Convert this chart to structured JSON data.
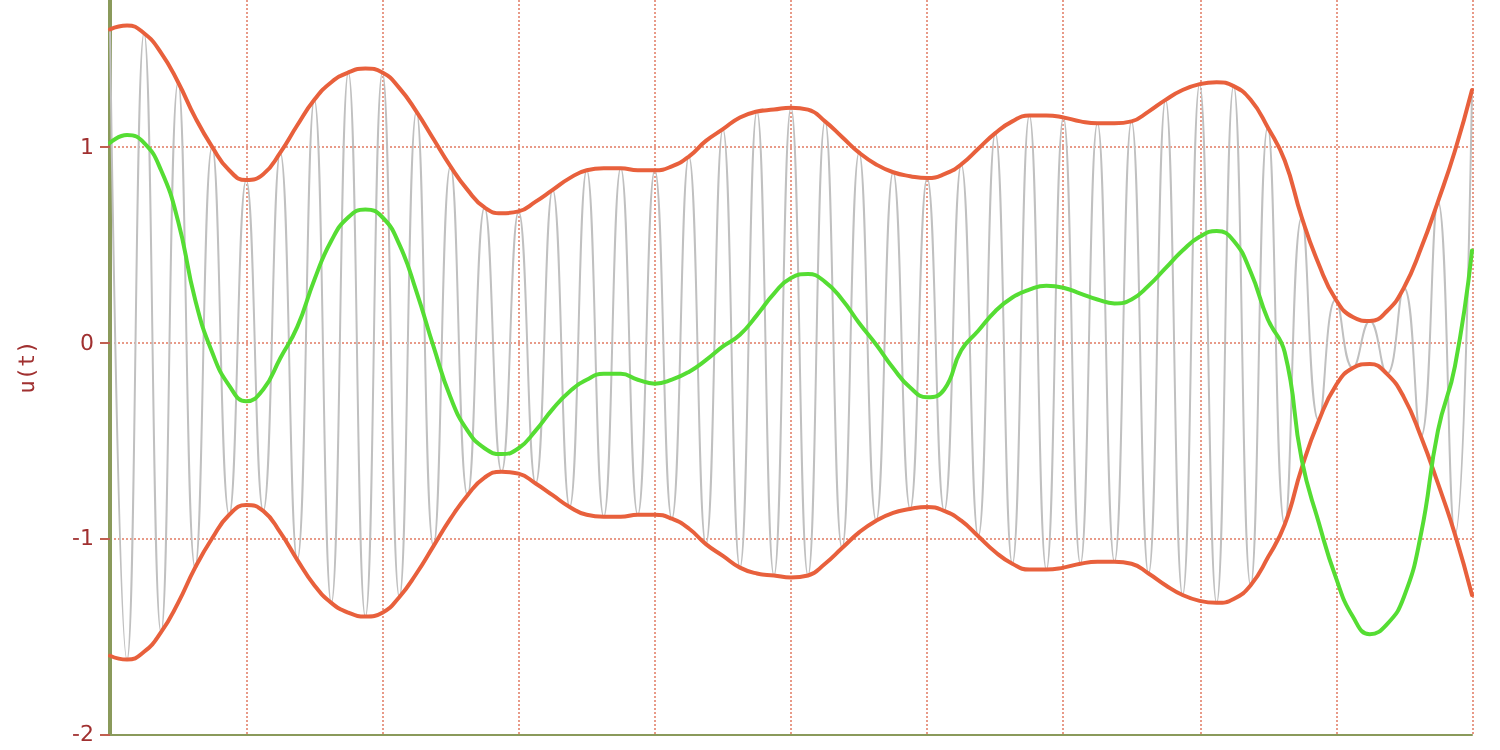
{
  "chart_data": {
    "type": "line",
    "ylabel": "u(t)",
    "ylim": [
      -2,
      1.75
    ],
    "yticks": [
      -2,
      -1,
      0,
      1
    ],
    "grid": true,
    "marker": "none",
    "line_style": "solid",
    "categories": [
      null,
      null,
      null,
      null,
      null,
      null,
      null,
      null,
      null,
      null,
      null,
      null,
      null,
      null,
      null,
      null,
      null,
      null,
      null,
      null,
      null,
      null,
      null,
      null,
      null,
      null,
      null,
      null,
      null,
      null,
      null,
      null,
      null,
      null,
      null,
      null,
      null,
      null,
      null,
      null,
      null,
      null,
      null,
      null,
      null,
      null,
      null,
      null,
      null,
      null,
      null,
      null,
      null,
      null,
      null,
      null,
      null,
      null,
      null,
      null,
      null,
      null,
      null,
      null,
      null,
      null,
      null,
      null,
      null,
      null,
      null,
      null,
      null,
      null,
      null,
      null,
      null,
      null,
      null,
      null,
      null
    ],
    "series": [
      {
        "color": "#c0c0c0",
        "values": [
          1.6,
          -1.62,
          1.58,
          -1.48,
          1.33,
          -1.15,
          1.0,
          -0.88,
          0.83,
          -0.86,
          0.97,
          -1.11,
          1.24,
          -1.33,
          1.38,
          -1.4,
          1.38,
          -1.3,
          1.18,
          -1.04,
          0.9,
          -0.78,
          0.69,
          -0.66,
          0.67,
          -0.72,
          0.78,
          -0.84,
          0.88,
          -0.89,
          0.89,
          -0.88,
          0.88,
          -0.9,
          0.95,
          -1.03,
          1.09,
          -1.15,
          1.18,
          -1.19,
          1.2,
          -1.19,
          1.13,
          -1.05,
          0.97,
          -0.91,
          0.87,
          -0.85,
          0.84,
          -0.86,
          0.91,
          -0.99,
          1.07,
          -1.13,
          1.16,
          -1.16,
          1.15,
          -1.13,
          1.12,
          -1.12,
          1.13,
          -1.18,
          1.24,
          -1.29,
          1.32,
          -1.33,
          1.31,
          -1.24,
          1.1,
          -0.93,
          0.64,
          -0.4,
          0.22,
          -0.13,
          0.11,
          -0.16,
          0.28,
          -0.48,
          0.72,
          -0.98,
          1.29
        ]
      },
      {
        "color": "#e8603c",
        "values": [
          1.6,
          1.62,
          1.58,
          1.48,
          1.33,
          1.15,
          1.0,
          0.88,
          0.83,
          0.86,
          0.97,
          1.11,
          1.24,
          1.33,
          1.38,
          1.4,
          1.38,
          1.3,
          1.18,
          1.04,
          0.9,
          0.78,
          0.69,
          0.66,
          0.67,
          0.72,
          0.78,
          0.84,
          0.88,
          0.89,
          0.89,
          0.88,
          0.88,
          0.9,
          0.95,
          1.03,
          1.09,
          1.15,
          1.18,
          1.19,
          1.2,
          1.19,
          1.13,
          1.05,
          0.97,
          0.91,
          0.87,
          0.85,
          0.84,
          0.86,
          0.91,
          0.99,
          1.07,
          1.13,
          1.16,
          1.16,
          1.15,
          1.13,
          1.12,
          1.12,
          1.13,
          1.18,
          1.24,
          1.29,
          1.32,
          1.33,
          1.31,
          1.24,
          1.1,
          0.93,
          0.64,
          0.4,
          0.22,
          0.13,
          0.11,
          0.16,
          0.28,
          0.48,
          0.72,
          0.98,
          1.29
        ]
      },
      {
        "color": "#e8603c",
        "values": [
          -1.6,
          -1.62,
          -1.58,
          -1.48,
          -1.33,
          -1.15,
          -1.0,
          -0.88,
          -0.83,
          -0.86,
          -0.97,
          -1.11,
          -1.24,
          -1.33,
          -1.38,
          -1.4,
          -1.38,
          -1.3,
          -1.18,
          -1.04,
          -0.9,
          -0.78,
          -0.69,
          -0.66,
          -0.67,
          -0.72,
          -0.78,
          -0.84,
          -0.88,
          -0.89,
          -0.89,
          -0.88,
          -0.88,
          -0.9,
          -0.95,
          -1.03,
          -1.09,
          -1.15,
          -1.18,
          -1.19,
          -1.2,
          -1.19,
          -1.13,
          -1.05,
          -0.97,
          -0.91,
          -0.87,
          -0.85,
          -0.84,
          -0.86,
          -0.91,
          -0.99,
          -1.07,
          -1.13,
          -1.16,
          -1.16,
          -1.15,
          -1.13,
          -1.12,
          -1.12,
          -1.13,
          -1.18,
          -1.24,
          -1.29,
          -1.32,
          -1.33,
          -1.31,
          -1.24,
          -1.1,
          -0.93,
          -0.64,
          -0.4,
          -0.22,
          -0.13,
          -0.11,
          -0.16,
          -0.28,
          -0.48,
          -0.72,
          -0.98,
          -1.29
        ]
      },
      {
        "color": "#55dd33",
        "values": [
          1.02,
          1.06,
          1.02,
          0.88,
          0.62,
          0.22,
          -0.05,
          -0.22,
          -0.3,
          -0.24,
          -0.08,
          0.08,
          0.32,
          0.52,
          0.64,
          0.68,
          0.64,
          0.5,
          0.26,
          -0.02,
          -0.28,
          -0.45,
          -0.54,
          -0.57,
          -0.54,
          -0.45,
          -0.34,
          -0.25,
          -0.19,
          -0.16,
          -0.16,
          -0.19,
          -0.21,
          -0.19,
          -0.15,
          -0.09,
          -0.02,
          0.04,
          0.14,
          0.25,
          0.33,
          0.35,
          0.31,
          0.22,
          0.1,
          -0.01,
          -0.13,
          -0.23,
          -0.28,
          -0.24,
          -0.04,
          0.06,
          0.16,
          0.23,
          0.27,
          0.29,
          0.28,
          0.25,
          0.22,
          0.2,
          0.22,
          0.29,
          0.38,
          0.47,
          0.54,
          0.57,
          0.52,
          0.36,
          0.12,
          -0.05,
          -0.6,
          -0.92,
          -1.2,
          -1.4,
          -1.49,
          -1.44,
          -1.3,
          -0.98,
          -0.45,
          -0.12,
          0.47
        ]
      }
    ]
  }
}
